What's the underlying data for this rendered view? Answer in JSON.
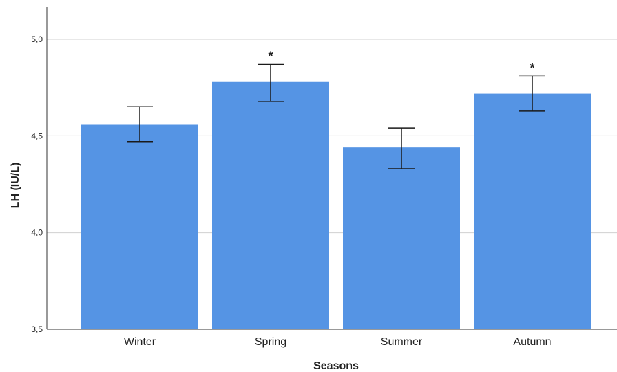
{
  "chart_data": {
    "type": "bar",
    "xlabel": "Seasons",
    "ylabel": "LH (IU/L)",
    "ylim": [
      3.5,
      5.0
    ],
    "y_ticks": [
      3.5,
      4.0,
      4.5,
      5.0
    ],
    "y_tick_labels": [
      "3,5",
      "4,0",
      "4,5",
      "5,0"
    ],
    "categories": [
      "Winter",
      "Spring",
      "Summer",
      "Autumn"
    ],
    "values": [
      4.56,
      4.78,
      4.44,
      4.72
    ],
    "error_low": [
      4.47,
      4.68,
      4.33,
      4.63
    ],
    "error_high": [
      4.65,
      4.87,
      4.54,
      4.81
    ],
    "significance": [
      "",
      "*",
      "",
      "*"
    ],
    "grid": true,
    "bar_color": "#5594E4",
    "gridline_color": "#D0D0D0",
    "axis_color": "#333333"
  }
}
